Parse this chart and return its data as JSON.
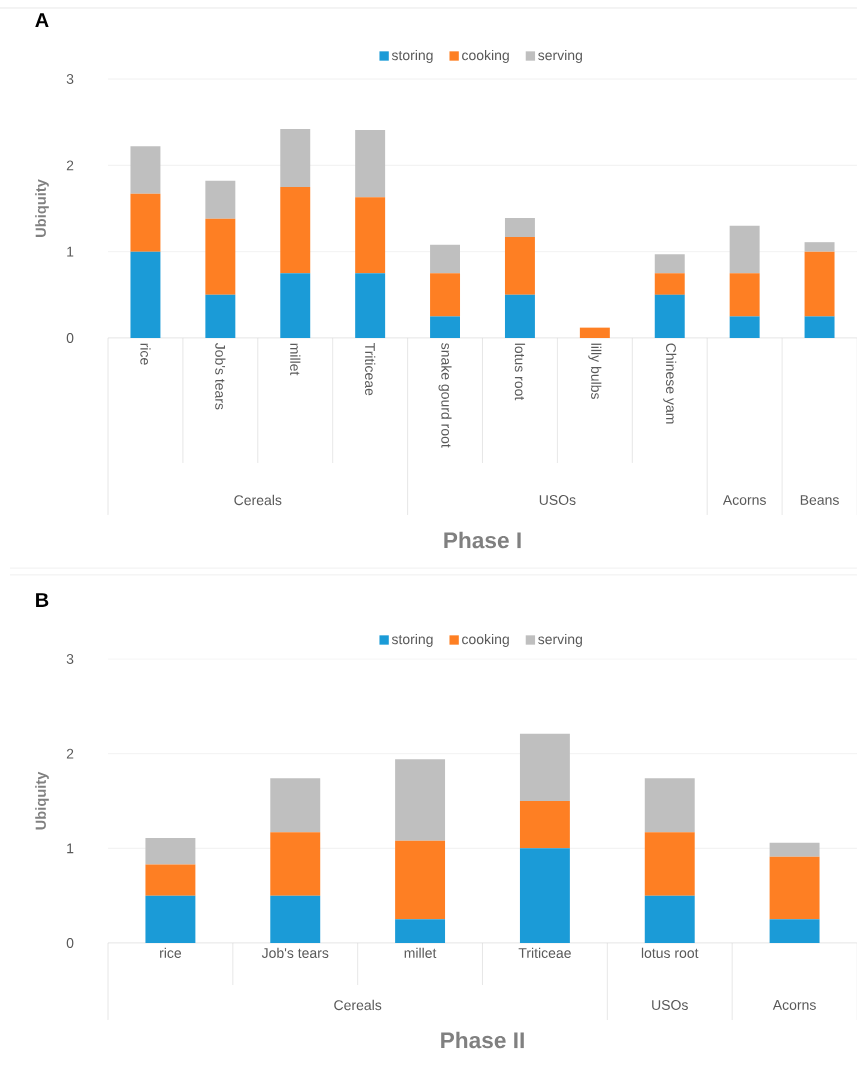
{
  "chart_data": [
    {
      "type": "bar",
      "stacked": true,
      "title": "A",
      "xlabel": "Phase I",
      "ylabel": "Ubiquity",
      "categories": [
        "rice",
        "Job's tears",
        "millet",
        "Triticeae",
        "snake gourd root",
        "lotus root",
        "lilly bulbs",
        "Chinese yam",
        null,
        null
      ],
      "series": [
        {
          "name": "storing",
          "color": "#1b9bd7",
          "values": [
            1.0,
            0.5,
            0.75,
            0.75,
            0.25,
            0.5,
            0,
            0.5,
            0.25,
            0.25
          ]
        },
        {
          "name": "cooking",
          "color": "#fe7f23",
          "values": [
            0.67,
            0.88,
            1.0,
            0.88,
            0.5,
            0.67,
            0.12,
            0.25,
            0.5,
            0.75
          ]
        },
        {
          "name": "serving",
          "color": "#bfbfbf",
          "values": [
            0.55,
            0.44,
            0.67,
            0.78,
            0.33,
            0.22,
            0,
            0.22,
            0.55,
            0.11
          ]
        }
      ],
      "ylim": [
        0,
        3
      ],
      "yticks": [
        0,
        1,
        2,
        3
      ],
      "grid": "y",
      "legend": "top",
      "annotations": [
        "Cereals",
        "USOs",
        "Acorns",
        "Beans"
      ]
    },
    {
      "type": "bar",
      "stacked": true,
      "title": "B",
      "xlabel": "Phase II",
      "ylabel": "Ubiquity",
      "categories": [
        "rice",
        "Job's tears",
        "millet",
        "Triticeae",
        "lotus root",
        null
      ],
      "series": [
        {
          "name": "storing",
          "color": "#1b9bd7",
          "values": [
            0.5,
            0.5,
            0.25,
            1.0,
            0.5,
            0.25
          ]
        },
        {
          "name": "cooking",
          "color": "#fe7f23",
          "values": [
            0.33,
            0.67,
            0.83,
            0.5,
            0.67,
            0.66
          ]
        },
        {
          "name": "serving",
          "color": "#bfbfbf",
          "values": [
            0.28,
            0.57,
            0.86,
            0.71,
            0.57,
            0.15
          ]
        }
      ],
      "ylim": [
        0,
        3
      ],
      "yticks": [
        0,
        1,
        2,
        3
      ],
      "grid": "y",
      "legend": "top",
      "annotations": [
        "Cereals",
        "USOs",
        "Acorns"
      ]
    }
  ]
}
